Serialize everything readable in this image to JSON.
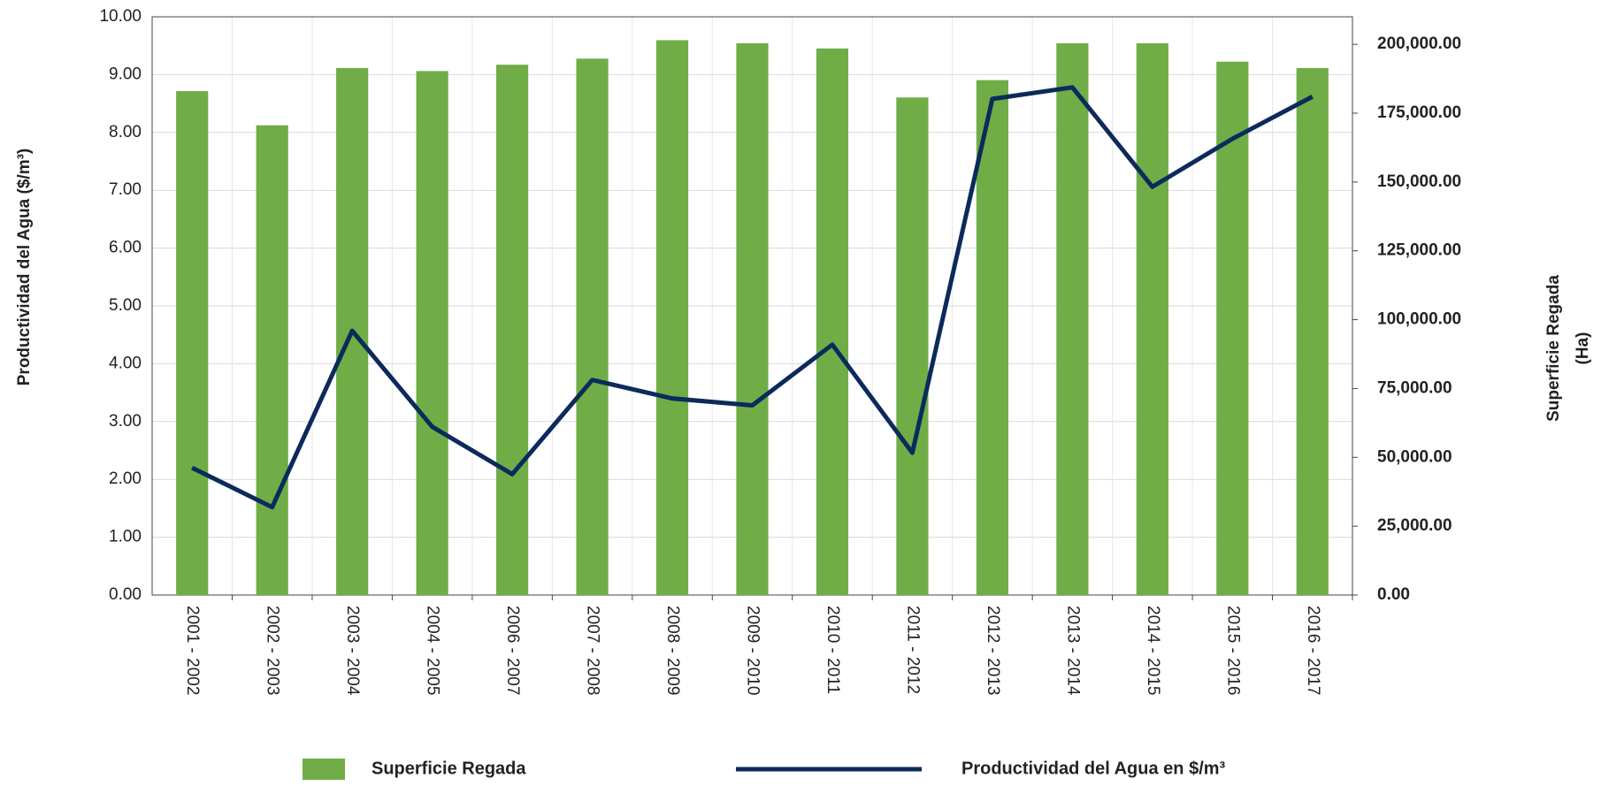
{
  "chart_data": {
    "type": "bar-line",
    "categories": [
      "2001 - 2002",
      "2002 - 2003",
      "2003 - 2004",
      "2004 - 2005",
      "2006 - 2007",
      "2007 - 2008",
      "2008 - 2009",
      "2009 - 2010",
      "2010 - 2011",
      "2011 - 2012",
      "2012 - 2013",
      "2013 - 2014",
      "2014 - 2015",
      "2015 - 2016",
      "2016 - 2017"
    ],
    "series": [
      {
        "name": "Superficie Regada",
        "type": "bar",
        "axis": "y2",
        "color": "#70ad47",
        "values": [
          183000,
          170600,
          191400,
          190300,
          192600,
          194800,
          201500,
          200400,
          198500,
          180700,
          187000,
          200400,
          200400,
          193700,
          191400
        ]
      },
      {
        "name": "Productividad del Agua en $/m³",
        "type": "line",
        "axis": "y",
        "color": "#0c2a5b",
        "values": [
          2.2,
          1.52,
          4.57,
          2.91,
          2.09,
          3.72,
          3.4,
          3.28,
          4.33,
          2.46,
          8.58,
          8.78,
          7.06,
          7.89,
          8.62
        ]
      }
    ],
    "ylabel": "Productividad del Agua  ($/m³)",
    "y2label": [
      "Superficie  Regada",
      "(Ha)"
    ],
    "ylim": [
      0,
      10
    ],
    "yticks": [
      {
        "value": 0,
        "label": "0.00"
      },
      {
        "value": 1,
        "label": "1.00"
      },
      {
        "value": 2,
        "label": "2.00"
      },
      {
        "value": 3,
        "label": "3.00"
      },
      {
        "value": 4,
        "label": "4.00"
      },
      {
        "value": 5,
        "label": "5.00"
      },
      {
        "value": 6,
        "label": "6.00"
      },
      {
        "value": 7,
        "label": "7.00"
      },
      {
        "value": 8,
        "label": "8.00"
      },
      {
        "value": 9,
        "label": "9.00"
      },
      {
        "value": 10,
        "label": "10.00"
      }
    ],
    "y2lim": [
      0,
      210000
    ],
    "y2ticks": [
      {
        "value": 0,
        "label": "0.00"
      },
      {
        "value": 25000,
        "label": "25,000.00"
      },
      {
        "value": 50000,
        "label": "50,000.00"
      },
      {
        "value": 75000,
        "label": "75,000.00"
      },
      {
        "value": 100000,
        "label": "100,000.00"
      },
      {
        "value": 125000,
        "label": "125,000.00"
      },
      {
        "value": 150000,
        "label": "150,000.00"
      },
      {
        "value": 175000,
        "label": "175,000.00"
      },
      {
        "value": 200000,
        "label": "200,000.00"
      }
    ],
    "grid": true,
    "legend": "bottom"
  }
}
